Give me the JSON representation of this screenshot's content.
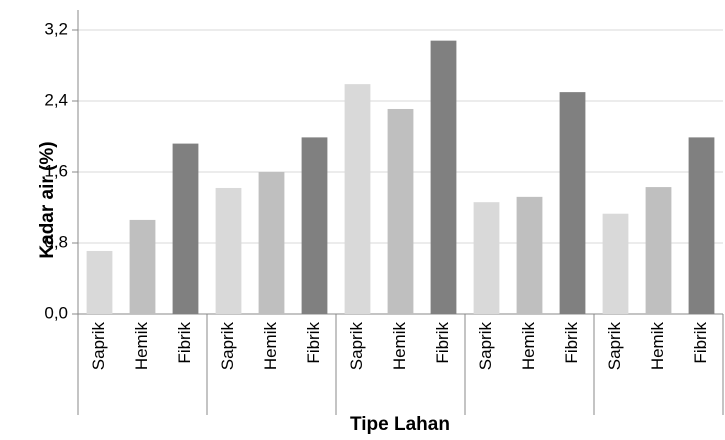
{
  "chart_data": {
    "type": "bar",
    "x_label": "Tipe Lahan",
    "y_label": "Kadar air (%)",
    "categories": [
      "Saprik",
      "Hemik",
      "Fibrik",
      "Saprik",
      "Hemik",
      "Fibrik",
      "Saprik",
      "Hemik",
      "Fibrik",
      "Saprik",
      "Hemik",
      "Fibrik",
      "Saprik",
      "Hemik",
      "Fibrik"
    ],
    "values": [
      0.71,
      1.06,
      1.92,
      1.42,
      1.6,
      1.99,
      2.59,
      2.31,
      3.08,
      1.26,
      1.32,
      2.5,
      1.13,
      1.43,
      1.99
    ],
    "colors": [
      "#d9d9d9",
      "#bfbfbf",
      "#808080"
    ],
    "ylim": [
      0,
      3.2
    ],
    "yticks": [
      {
        "value": 0,
        "label": "0,0"
      },
      {
        "value": 0.8,
        "label": "0,8"
      },
      {
        "value": 1.6,
        "label": "1,6"
      },
      {
        "value": 2.4,
        "label": "2,4"
      },
      {
        "value": 3.2,
        "label": "3,2"
      }
    ],
    "grid": true
  }
}
